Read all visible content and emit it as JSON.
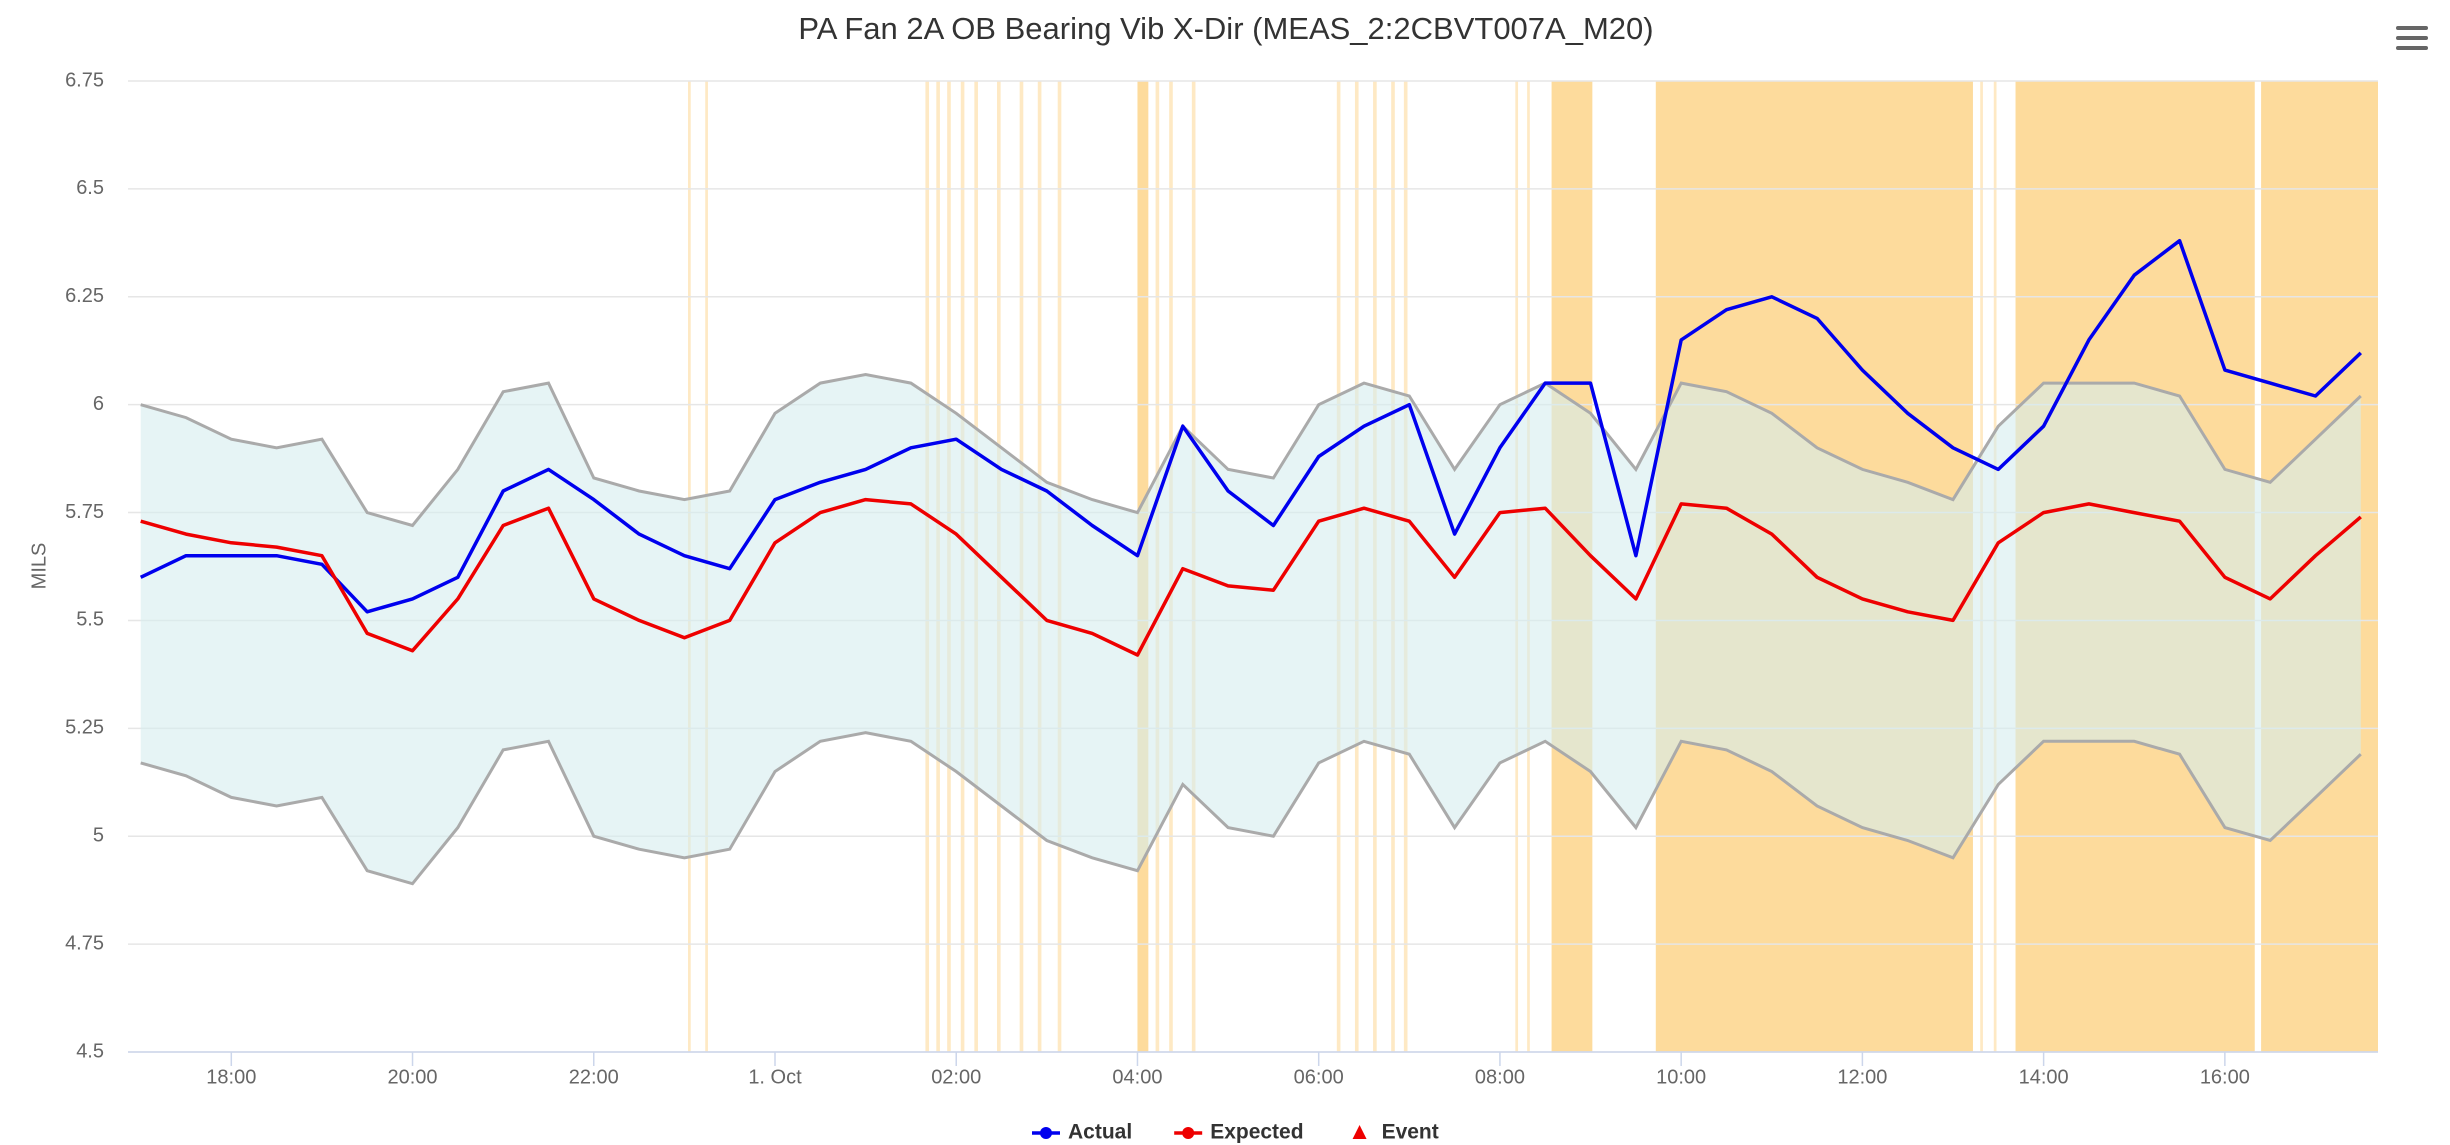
{
  "chart_data": {
    "type": "line",
    "title": "PA Fan 2A OB Bearing Vib X-Dir (MEAS_2:2CBVT007A_M20)",
    "y_label": "MILS",
    "x": [
      17,
      17.5,
      18,
      18.5,
      19,
      19.5,
      20,
      20.5,
      21,
      21.5,
      22,
      22.5,
      23,
      23.5,
      24,
      24.5,
      25,
      25.5,
      26,
      26.5,
      27,
      27.5,
      28,
      28.5,
      29,
      29.5,
      30,
      30.5,
      31,
      31.5,
      32,
      32.5,
      33,
      33.5,
      34,
      34.5,
      35,
      35.5,
      36,
      36.5,
      37,
      37.5,
      38,
      38.5,
      39,
      39.5,
      40,
      40.5,
      41,
      41.5
    ],
    "xlim": [
      16.86,
      41.69
    ],
    "xticks": [
      {
        "value": 18,
        "label": "18:00"
      },
      {
        "value": 20,
        "label": "20:00"
      },
      {
        "value": 22,
        "label": "22:00"
      },
      {
        "value": 24,
        "label": "1. Oct"
      },
      {
        "value": 26,
        "label": "02:00"
      },
      {
        "value": 28,
        "label": "04:00"
      },
      {
        "value": 30,
        "label": "06:00"
      },
      {
        "value": 32,
        "label": "08:00"
      },
      {
        "value": 34,
        "label": "10:00"
      },
      {
        "value": 36,
        "label": "12:00"
      },
      {
        "value": 38,
        "label": "14:00"
      },
      {
        "value": 40,
        "label": "16:00"
      }
    ],
    "ylim": [
      4.5,
      6.75
    ],
    "yticks": [
      4.5,
      4.75,
      5,
      5.25,
      5.5,
      5.75,
      6,
      6.25,
      6.5,
      6.75
    ],
    "grid": true,
    "series": [
      {
        "name": "Actual",
        "color": "#0000ee",
        "marker": "circle",
        "values": [
          5.6,
          5.65,
          5.65,
          5.65,
          5.63,
          5.52,
          5.55,
          5.6,
          5.8,
          5.85,
          5.78,
          5.7,
          5.65,
          5.62,
          5.78,
          5.82,
          5.85,
          5.9,
          5.92,
          5.85,
          5.8,
          5.72,
          5.65,
          5.95,
          5.8,
          5.72,
          5.88,
          5.95,
          6.0,
          5.7,
          5.9,
          6.05,
          6.05,
          5.65,
          6.15,
          6.22,
          6.25,
          6.2,
          6.08,
          5.98,
          5.9,
          5.85,
          5.95,
          6.15,
          6.3,
          6.38,
          6.08,
          6.05,
          6.02,
          6.12
        ]
      },
      {
        "name": "Expected",
        "color": "#ee0000",
        "marker": "circle",
        "values": [
          5.73,
          5.7,
          5.68,
          5.67,
          5.65,
          5.47,
          5.43,
          5.55,
          5.72,
          5.76,
          5.55,
          5.5,
          5.46,
          5.5,
          5.68,
          5.75,
          5.78,
          5.77,
          5.7,
          5.6,
          5.5,
          5.47,
          5.42,
          5.62,
          5.58,
          5.57,
          5.73,
          5.76,
          5.73,
          5.6,
          5.75,
          5.76,
          5.65,
          5.55,
          5.77,
          5.76,
          5.7,
          5.6,
          5.55,
          5.52,
          5.5,
          5.68,
          5.75,
          5.77,
          5.75,
          5.73,
          5.6,
          5.55,
          5.65,
          5.74
        ]
      },
      {
        "name": "Event",
        "color": "#ee0000",
        "marker": "triangle"
      }
    ],
    "envelope": {
      "line_color": "#aaaaaa",
      "fill_color": "#d6ecee",
      "upper": [
        6.0,
        5.97,
        5.92,
        5.9,
        5.92,
        5.75,
        5.72,
        5.85,
        6.03,
        6.05,
        5.83,
        5.8,
        5.78,
        5.8,
        5.98,
        6.05,
        6.07,
        6.05,
        5.98,
        5.9,
        5.82,
        5.78,
        5.75,
        5.95,
        5.85,
        5.83,
        6.0,
        6.05,
        6.02,
        5.85,
        6.0,
        6.05,
        5.98,
        5.85,
        6.05,
        6.03,
        5.98,
        5.9,
        5.85,
        5.82,
        5.78,
        5.95,
        6.05,
        6.05,
        6.05,
        6.02,
        5.85,
        5.82,
        5.92,
        6.02
      ],
      "lower": [
        5.17,
        5.14,
        5.09,
        5.07,
        5.09,
        4.92,
        4.89,
        5.02,
        5.2,
        5.22,
        5.0,
        4.97,
        4.95,
        4.97,
        5.15,
        5.22,
        5.24,
        5.22,
        5.15,
        5.07,
        4.99,
        4.95,
        4.92,
        5.12,
        5.02,
        5.0,
        5.17,
        5.22,
        5.19,
        5.02,
        5.17,
        5.22,
        5.15,
        5.02,
        5.22,
        5.2,
        5.15,
        5.07,
        5.02,
        4.99,
        4.95,
        5.12,
        5.22,
        5.22,
        5.22,
        5.19,
        5.02,
        4.99,
        5.09,
        5.19
      ]
    },
    "event_band_color": "#fddb9c",
    "event_bands": [
      [
        23.04,
        23.07
      ],
      [
        23.23,
        23.26
      ],
      [
        25.66,
        25.7
      ],
      [
        25.78,
        25.82
      ],
      [
        25.9,
        25.94
      ],
      [
        26.05,
        26.09
      ],
      [
        26.2,
        26.24
      ],
      [
        26.45,
        26.49
      ],
      [
        26.7,
        26.74
      ],
      [
        26.9,
        26.94
      ],
      [
        27.12,
        27.16
      ],
      [
        28.0,
        28.12
      ],
      [
        28.2,
        28.24
      ],
      [
        28.35,
        28.39
      ],
      [
        28.6,
        28.64
      ],
      [
        30.2,
        30.24
      ],
      [
        30.4,
        30.44
      ],
      [
        30.6,
        30.64
      ],
      [
        30.8,
        30.84
      ],
      [
        30.94,
        30.98
      ],
      [
        32.17,
        32.2
      ],
      [
        32.3,
        32.33
      ],
      [
        32.57,
        33.02
      ],
      [
        33.72,
        37.22
      ],
      [
        37.3,
        37.33
      ],
      [
        37.45,
        37.48
      ],
      [
        37.69,
        40.33
      ],
      [
        40.4,
        41.69
      ]
    ]
  }
}
